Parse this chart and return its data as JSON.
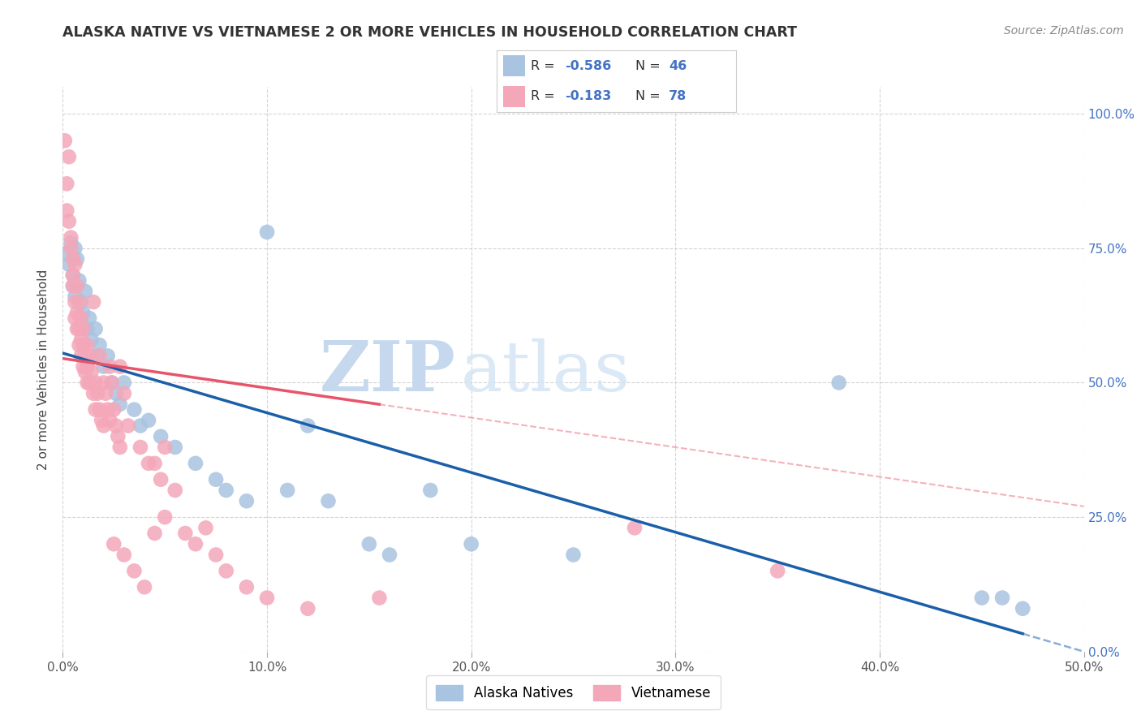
{
  "title": "ALASKA NATIVE VS VIETNAMESE 2 OR MORE VEHICLES IN HOUSEHOLD CORRELATION CHART",
  "source": "Source: ZipAtlas.com",
  "ylabel": "2 or more Vehicles in Household",
  "xlim": [
    0.0,
    0.5
  ],
  "ylim": [
    0.0,
    1.05
  ],
  "x_ticks": [
    0.0,
    0.1,
    0.2,
    0.3,
    0.4,
    0.5
  ],
  "x_tick_labels": [
    "0.0%",
    "10.0%",
    "20.0%",
    "30.0%",
    "40.0%",
    "50.0%"
  ],
  "y_ticks": [
    0.0,
    0.25,
    0.5,
    0.75,
    1.0
  ],
  "y_tick_labels": [
    "0.0%",
    "25.0%",
    "50.0%",
    "75.0%",
    "100.0%"
  ],
  "alaska_color": "#a8c4e0",
  "vietnamese_color": "#f4a7b9",
  "alaska_line_color": "#1a5fa8",
  "vietnamese_line_color": "#e8546a",
  "alaska_R": -0.586,
  "alaska_N": 46,
  "vietnamese_R": -0.183,
  "vietnamese_N": 78,
  "legend_label_alaska": "Alaska Natives",
  "legend_label_vietnamese": "Vietnamese",
  "background_color": "#ffffff",
  "alaska_points": [
    [
      0.001,
      0.74
    ],
    [
      0.003,
      0.72
    ],
    [
      0.004,
      0.76
    ],
    [
      0.005,
      0.7
    ],
    [
      0.005,
      0.68
    ],
    [
      0.006,
      0.75
    ],
    [
      0.006,
      0.66
    ],
    [
      0.007,
      0.73
    ],
    [
      0.008,
      0.69
    ],
    [
      0.009,
      0.65
    ],
    [
      0.01,
      0.63
    ],
    [
      0.011,
      0.67
    ],
    [
      0.012,
      0.6
    ],
    [
      0.013,
      0.62
    ],
    [
      0.014,
      0.58
    ],
    [
      0.016,
      0.6
    ],
    [
      0.017,
      0.55
    ],
    [
      0.018,
      0.57
    ],
    [
      0.02,
      0.53
    ],
    [
      0.022,
      0.55
    ],
    [
      0.024,
      0.5
    ],
    [
      0.026,
      0.48
    ],
    [
      0.028,
      0.46
    ],
    [
      0.03,
      0.5
    ],
    [
      0.035,
      0.45
    ],
    [
      0.038,
      0.42
    ],
    [
      0.042,
      0.43
    ],
    [
      0.048,
      0.4
    ],
    [
      0.055,
      0.38
    ],
    [
      0.065,
      0.35
    ],
    [
      0.075,
      0.32
    ],
    [
      0.08,
      0.3
    ],
    [
      0.09,
      0.28
    ],
    [
      0.1,
      0.78
    ],
    [
      0.11,
      0.3
    ],
    [
      0.12,
      0.42
    ],
    [
      0.13,
      0.28
    ],
    [
      0.15,
      0.2
    ],
    [
      0.16,
      0.18
    ],
    [
      0.18,
      0.3
    ],
    [
      0.2,
      0.2
    ],
    [
      0.25,
      0.18
    ],
    [
      0.38,
      0.5
    ],
    [
      0.45,
      0.1
    ],
    [
      0.46,
      0.1
    ],
    [
      0.47,
      0.08
    ]
  ],
  "vietnamese_points": [
    [
      0.001,
      0.95
    ],
    [
      0.002,
      0.87
    ],
    [
      0.002,
      0.82
    ],
    [
      0.003,
      0.92
    ],
    [
      0.003,
      0.8
    ],
    [
      0.004,
      0.77
    ],
    [
      0.004,
      0.75
    ],
    [
      0.005,
      0.73
    ],
    [
      0.005,
      0.7
    ],
    [
      0.005,
      0.68
    ],
    [
      0.006,
      0.72
    ],
    [
      0.006,
      0.65
    ],
    [
      0.006,
      0.62
    ],
    [
      0.007,
      0.68
    ],
    [
      0.007,
      0.63
    ],
    [
      0.007,
      0.6
    ],
    [
      0.008,
      0.65
    ],
    [
      0.008,
      0.6
    ],
    [
      0.008,
      0.57
    ],
    [
      0.009,
      0.62
    ],
    [
      0.009,
      0.58
    ],
    [
      0.009,
      0.55
    ],
    [
      0.01,
      0.6
    ],
    [
      0.01,
      0.57
    ],
    [
      0.01,
      0.53
    ],
    [
      0.011,
      0.55
    ],
    [
      0.011,
      0.52
    ],
    [
      0.012,
      0.57
    ],
    [
      0.012,
      0.53
    ],
    [
      0.012,
      0.5
    ],
    [
      0.013,
      0.55
    ],
    [
      0.013,
      0.5
    ],
    [
      0.014,
      0.52
    ],
    [
      0.015,
      0.65
    ],
    [
      0.015,
      0.48
    ],
    [
      0.016,
      0.5
    ],
    [
      0.016,
      0.45
    ],
    [
      0.017,
      0.48
    ],
    [
      0.018,
      0.55
    ],
    [
      0.018,
      0.45
    ],
    [
      0.019,
      0.43
    ],
    [
      0.02,
      0.5
    ],
    [
      0.02,
      0.42
    ],
    [
      0.021,
      0.48
    ],
    [
      0.022,
      0.45
    ],
    [
      0.023,
      0.53
    ],
    [
      0.023,
      0.43
    ],
    [
      0.024,
      0.5
    ],
    [
      0.025,
      0.45
    ],
    [
      0.025,
      0.2
    ],
    [
      0.026,
      0.42
    ],
    [
      0.027,
      0.4
    ],
    [
      0.028,
      0.53
    ],
    [
      0.028,
      0.38
    ],
    [
      0.03,
      0.48
    ],
    [
      0.03,
      0.18
    ],
    [
      0.032,
      0.42
    ],
    [
      0.035,
      0.15
    ],
    [
      0.038,
      0.38
    ],
    [
      0.04,
      0.12
    ],
    [
      0.042,
      0.35
    ],
    [
      0.045,
      0.35
    ],
    [
      0.045,
      0.22
    ],
    [
      0.048,
      0.32
    ],
    [
      0.05,
      0.38
    ],
    [
      0.05,
      0.25
    ],
    [
      0.055,
      0.3
    ],
    [
      0.06,
      0.22
    ],
    [
      0.065,
      0.2
    ],
    [
      0.07,
      0.23
    ],
    [
      0.075,
      0.18
    ],
    [
      0.08,
      0.15
    ],
    [
      0.09,
      0.12
    ],
    [
      0.1,
      0.1
    ],
    [
      0.12,
      0.08
    ],
    [
      0.155,
      0.1
    ],
    [
      0.28,
      0.23
    ],
    [
      0.35,
      0.15
    ]
  ]
}
